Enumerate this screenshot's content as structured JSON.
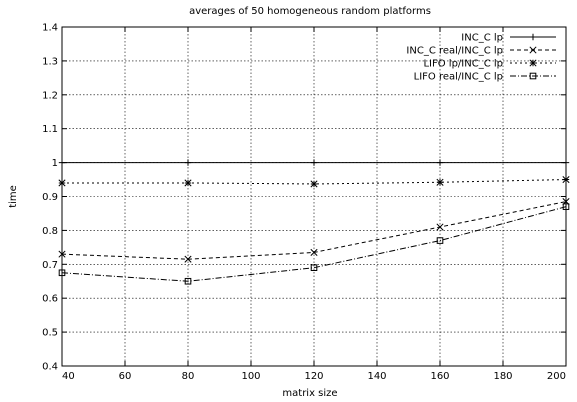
{
  "chart_data": {
    "type": "line",
    "title": "averages of 50 homogeneous random platforms",
    "xlabel": "matrix size",
    "ylabel": "time",
    "xlim": [
      40,
      200
    ],
    "ylim": [
      0.4,
      1.4
    ],
    "xticks": [
      40,
      60,
      80,
      100,
      120,
      140,
      160,
      180,
      200
    ],
    "xtick_labels": [
      "40",
      "60",
      "80",
      "100",
      "120",
      "140",
      "160",
      "180",
      "200"
    ],
    "yticks": [
      0.4,
      0.5,
      0.6,
      0.7,
      0.8,
      0.9,
      1.0,
      1.1,
      1.2,
      1.3,
      1.4
    ],
    "ytick_labels": [
      "0.4",
      "0.5",
      "0.6",
      "0.7",
      "0.8",
      "0.9",
      "1",
      "1.1",
      "1.2",
      "1.3",
      "1.4"
    ],
    "grid": true,
    "legend_position": "top-right",
    "x": [
      40,
      80,
      120,
      160,
      200
    ],
    "series": [
      {
        "name": "INC_C lp",
        "values": [
          1.0,
          1.0,
          1.0,
          1.0,
          1.0
        ],
        "marker": "plus",
        "dash": ""
      },
      {
        "name": "INC_C real/INC_C lp",
        "values": [
          0.73,
          0.715,
          0.735,
          0.81,
          0.885
        ],
        "marker": "x",
        "dash": "4 3"
      },
      {
        "name": "LIFO lp/INC_C lp",
        "values": [
          0.94,
          0.94,
          0.937,
          0.942,
          0.95
        ],
        "marker": "star",
        "dash": "2 3"
      },
      {
        "name": "LIFO real/INC_C lp",
        "values": [
          0.675,
          0.65,
          0.69,
          0.77,
          0.87
        ],
        "marker": "square",
        "dash": "6 2 1 2"
      }
    ]
  }
}
